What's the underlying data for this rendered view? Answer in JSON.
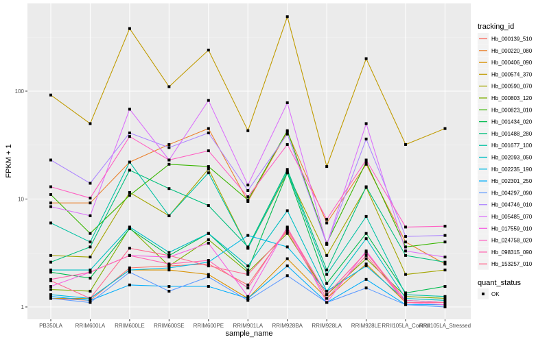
{
  "chart_data": {
    "type": "line",
    "title": "",
    "xlabel": "sample_name",
    "ylabel": "FPKM + 1",
    "yscale": "log10",
    "ylim": [
      0.78,
      620
    ],
    "yticks": [
      1,
      10,
      100
    ],
    "ytick_labels": [
      "1",
      "10",
      "100"
    ],
    "grid": true,
    "categories": [
      "PB350LA",
      "RRIM600LA",
      "RRIM600LE",
      "RRIM600SE",
      "RRIM600PE",
      "RRIM901LA",
      "RRIM928BA",
      "RRIM928LA",
      "RRIM928LE",
      "RRII105LA_Control",
      "RRII105LA_Stressed"
    ],
    "legend": {
      "title": "tracking_id",
      "placement": "right",
      "shape_title": "quant_status",
      "shape_entries": [
        "OK"
      ]
    },
    "series": [
      {
        "name": "Hb_000139_510",
        "color": "#F8766D",
        "values": [
          1.2,
          1.15,
          2.3,
          2.4,
          2.5,
          1.6,
          5.2,
          1.3,
          3.2,
          1.1,
          1.05
        ]
      },
      {
        "name": "Hb_000220_080",
        "color": "#EA8331",
        "values": [
          9.2,
          9.2,
          22,
          32,
          45,
          9.5,
          42,
          6,
          21,
          4,
          2.5
        ]
      },
      {
        "name": "Hb_000406_090",
        "color": "#D89000",
        "values": [
          1.2,
          1.2,
          2.2,
          2.2,
          2.0,
          1.2,
          2.8,
          1.2,
          2.5,
          1.1,
          1.1
        ]
      },
      {
        "name": "Hb_000574_370",
        "color": "#C09B00",
        "values": [
          92,
          50,
          380,
          110,
          240,
          43,
          490,
          20,
          200,
          32,
          45
        ]
      },
      {
        "name": "Hb_000590_070",
        "color": "#A3A500",
        "values": [
          3.0,
          2.9,
          11.5,
          7,
          19,
          3.5,
          17.5,
          3.0,
          12.8,
          2.0,
          2.2
        ]
      },
      {
        "name": "Hb_000803_120",
        "color": "#7CAE00",
        "values": [
          1.45,
          1.4,
          5.4,
          2.4,
          4.2,
          2.1,
          4.8,
          1.3,
          2.8,
          1.25,
          1.2
        ]
      },
      {
        "name": "Hb_000823_010",
        "color": "#39B600",
        "values": [
          11,
          4.8,
          10.8,
          21,
          20,
          9.8,
          43,
          3.9,
          22,
          3.6,
          4.0
        ]
      },
      {
        "name": "Hb_001434_020",
        "color": "#00BB4E",
        "values": [
          2.1,
          1.85,
          5.3,
          3.0,
          4.8,
          2.2,
          17.5,
          1.65,
          4.8,
          1.35,
          1.55
        ]
      },
      {
        "name": "Hb_001488_280",
        "color": "#00BF7D",
        "values": [
          2.6,
          3.6,
          18.5,
          12.5,
          8.7,
          3.6,
          18.8,
          2.2,
          13,
          3.0,
          2.6
        ]
      },
      {
        "name": "Hb_001677_100",
        "color": "#00C1A3",
        "values": [
          6,
          4.0,
          22,
          7,
          17.5,
          3.5,
          18,
          2.0,
          6.9,
          1.3,
          1.25
        ]
      },
      {
        "name": "Hb_002093_050",
        "color": "#00BFC4",
        "values": [
          2.2,
          2.2,
          5.5,
          3.2,
          4.8,
          2.4,
          7.8,
          1.4,
          4.3,
          1.2,
          1.15
        ]
      },
      {
        "name": "Hb_002235_190",
        "color": "#00B9E3",
        "values": [
          1.3,
          1.2,
          2.2,
          2.3,
          2.6,
          4.6,
          3.6,
          1.4,
          2.4,
          1.15,
          1.1
        ]
      },
      {
        "name": "Hb_002301_250",
        "color": "#00ADFA",
        "values": [
          1.25,
          1.15,
          1.6,
          1.55,
          1.55,
          1.2,
          2.4,
          1.1,
          1.8,
          1.05,
          1.05
        ]
      },
      {
        "name": "Hb_004297_090",
        "color": "#619CFF",
        "values": [
          1.2,
          1.1,
          2.1,
          1.4,
          1.9,
          1.15,
          1.95,
          1.1,
          1.5,
          1.05,
          1.0
        ]
      },
      {
        "name": "Hb_004746_010",
        "color": "#AE87FF",
        "values": [
          23,
          14,
          41,
          30,
          41,
          12,
          40,
          3.8,
          36,
          4.5,
          4.6
        ]
      },
      {
        "name": "Hb_005485_070",
        "color": "#DB72FB",
        "values": [
          8.5,
          7,
          68,
          23,
          82,
          13.5,
          78,
          3.8,
          50,
          3.3,
          2.9
        ]
      },
      {
        "name": "Hb_017559_010",
        "color": "#F564E3",
        "values": [
          1.55,
          2.1,
          3.0,
          2.9,
          3.9,
          1.25,
          5.5,
          1.1,
          3.3,
          1.1,
          1.05
        ]
      },
      {
        "name": "Hb_024758_020",
        "color": "#FF61C3",
        "values": [
          13,
          10.2,
          38,
          23,
          28,
          10.5,
          32,
          6.5,
          23,
          5.5,
          5.6
        ]
      },
      {
        "name": "Hb_098315_090",
        "color": "#FF64B0",
        "values": [
          1.8,
          2.1,
          3.0,
          2.5,
          2.7,
          1.5,
          5.4,
          1.3,
          3.2,
          1.15,
          1.1
        ]
      },
      {
        "name": "Hb_153257_010",
        "color": "#FF6C91",
        "values": [
          1.75,
          1.2,
          3.5,
          3.0,
          2.4,
          2.0,
          5.0,
          1.2,
          3.0,
          1.1,
          1.1
        ]
      }
    ]
  }
}
